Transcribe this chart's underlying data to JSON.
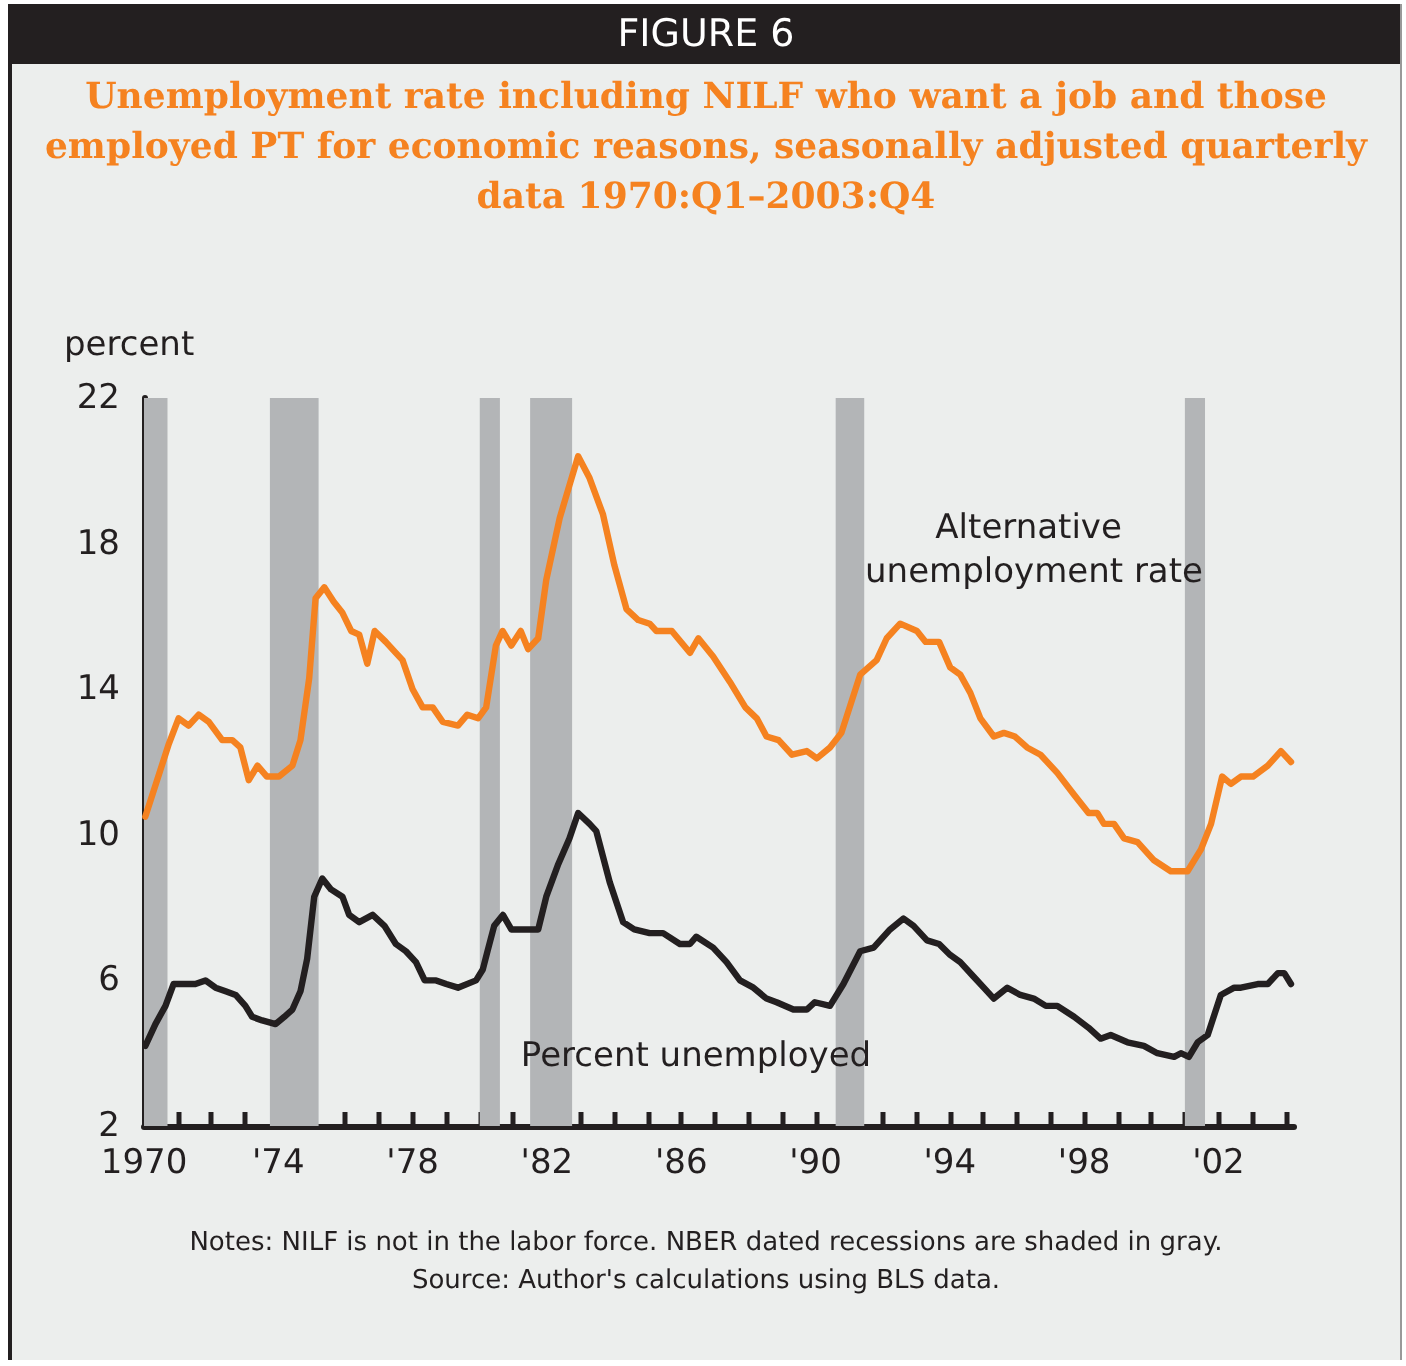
{
  "chart_data": {
    "type": "line",
    "title": "FIGURE 6",
    "subtitle": "Unemployment rate including NILF who want a job and those employed PT for economic reasons, seasonally adjusted quarterly data 1970:Q1–2003:Q4",
    "ylabel": "percent",
    "xlim": [
      1970,
      2004.25
    ],
    "xticks": [
      {
        "value": 1970,
        "label": "1970"
      },
      {
        "value": 1971,
        "label": null
      },
      {
        "value": 1972,
        "label": null
      },
      {
        "value": 1973,
        "label": null
      },
      {
        "value": 1974,
        "label": "'74"
      },
      {
        "value": 1975,
        "label": null
      },
      {
        "value": 1976,
        "label": null
      },
      {
        "value": 1977,
        "label": null
      },
      {
        "value": 1978,
        "label": "'78"
      },
      {
        "value": 1979,
        "label": null
      },
      {
        "value": 1980,
        "label": null
      },
      {
        "value": 1981,
        "label": null
      },
      {
        "value": 1982,
        "label": "'82"
      },
      {
        "value": 1983,
        "label": null
      },
      {
        "value": 1984,
        "label": null
      },
      {
        "value": 1985,
        "label": null
      },
      {
        "value": 1986,
        "label": "'86"
      },
      {
        "value": 1987,
        "label": null
      },
      {
        "value": 1988,
        "label": null
      },
      {
        "value": 1989,
        "label": null
      },
      {
        "value": 1990,
        "label": "'90"
      },
      {
        "value": 1991,
        "label": null
      },
      {
        "value": 1992,
        "label": null
      },
      {
        "value": 1993,
        "label": null
      },
      {
        "value": 1994,
        "label": "'94"
      },
      {
        "value": 1995,
        "label": null
      },
      {
        "value": 1996,
        "label": null
      },
      {
        "value": 1997,
        "label": null
      },
      {
        "value": 1998,
        "label": "'98"
      },
      {
        "value": 1999,
        "label": null
      },
      {
        "value": 2000,
        "label": null
      },
      {
        "value": 2001,
        "label": null
      },
      {
        "value": 2002,
        "label": "'02"
      },
      {
        "value": 2003,
        "label": null
      },
      {
        "value": 2004,
        "label": null
      }
    ],
    "ylim": [
      2,
      22
    ],
    "yticks": [
      2,
      6,
      10,
      14,
      18,
      22
    ],
    "grid": false,
    "marker": "none",
    "line_style": "solid",
    "series": [
      {
        "name": "Alternative unemployment rate",
        "color": "#f58220",
        "x": [
          1970.04,
          1970.74,
          1971.03,
          1971.33,
          1971.63,
          1971.93,
          1972.33,
          1972.63,
          1972.87,
          1973.12,
          1973.38,
          1973.66,
          1974.02,
          1974.42,
          1974.66,
          1974.92,
          1975.11,
          1975.37,
          1975.65,
          1975.91,
          1976.17,
          1976.41,
          1976.65,
          1976.87,
          1977.2,
          1977.5,
          1977.7,
          1978.0,
          1978.3,
          1978.6,
          1978.9,
          1979.35,
          1979.63,
          1979.95,
          1980.19,
          1980.48,
          1980.68,
          1980.94,
          1981.22,
          1981.44,
          1981.74,
          1981.98,
          1982.38,
          1982.67,
          1982.93,
          1983.27,
          1983.67,
          1984.01,
          1984.37,
          1984.72,
          1985.06,
          1985.26,
          1985.72,
          1986.26,
          1986.51,
          1986.95,
          1987.45,
          1987.91,
          1988.25,
          1988.54,
          1988.9,
          1989.3,
          1989.74,
          1990.04,
          1990.43,
          1990.77,
          1991.33,
          1991.82,
          1992.12,
          1992.52,
          1993.02,
          1993.28,
          1993.68,
          1994.01,
          1994.31,
          1994.61,
          1994.91,
          1995.31,
          1995.61,
          1995.94,
          1996.3,
          1996.7,
          1997.2,
          1997.7,
          1998.13,
          1998.39,
          1998.59,
          1998.89,
          1999.19,
          1999.59,
          2000.08,
          2000.58,
          2001.08,
          2001.48,
          2001.78,
          2002.11,
          2002.37,
          2002.67,
          2003.03,
          2003.47,
          2003.86,
          2004.16
        ],
        "values": [
          10.5,
          12.5,
          13.2,
          13.0,
          13.3,
          13.1,
          12.6,
          12.6,
          12.4,
          11.5,
          11.9,
          11.6,
          11.6,
          11.9,
          12.6,
          14.3,
          16.5,
          16.8,
          16.4,
          16.1,
          15.6,
          15.5,
          14.7,
          15.6,
          15.3,
          15.0,
          14.8,
          14.0,
          13.5,
          13.5,
          13.1,
          13.0,
          13.3,
          13.2,
          13.5,
          15.2,
          15.6,
          15.2,
          15.6,
          15.1,
          15.4,
          17.0,
          18.7,
          19.6,
          20.4,
          19.8,
          18.8,
          17.4,
          16.2,
          15.9,
          15.8,
          15.6,
          15.6,
          15.0,
          15.4,
          14.9,
          14.2,
          13.5,
          13.2,
          12.7,
          12.6,
          12.2,
          12.3,
          12.1,
          12.4,
          12.8,
          14.4,
          14.8,
          15.4,
          15.8,
          15.6,
          15.3,
          15.3,
          14.6,
          14.4,
          13.9,
          13.2,
          12.7,
          12.8,
          12.7,
          12.4,
          12.2,
          11.7,
          11.1,
          10.6,
          10.6,
          10.3,
          10.3,
          9.9,
          9.8,
          9.3,
          9.0,
          9.0,
          9.6,
          10.3,
          11.6,
          11.4,
          11.6,
          11.6,
          11.9,
          12.3,
          12.0
        ]
      },
      {
        "name": "Percent unemployed",
        "color": "#231f20",
        "x": [
          1970.04,
          1970.34,
          1970.64,
          1970.88,
          1971.13,
          1971.53,
          1971.83,
          1972.13,
          1972.43,
          1972.73,
          1973.02,
          1973.22,
          1973.52,
          1973.92,
          1974.18,
          1974.42,
          1974.66,
          1974.86,
          1975.07,
          1975.31,
          1975.57,
          1975.91,
          1976.11,
          1976.41,
          1976.81,
          1977.16,
          1977.5,
          1977.8,
          1978.1,
          1978.36,
          1978.7,
          1979.0,
          1979.35,
          1979.89,
          1980.09,
          1980.23,
          1980.43,
          1980.69,
          1980.94,
          1981.28,
          1981.74,
          1981.98,
          1982.34,
          1982.67,
          1982.93,
          1983.27,
          1983.47,
          1983.87,
          1984.27,
          1984.6,
          1985.06,
          1985.46,
          1985.96,
          1986.26,
          1986.45,
          1986.95,
          1987.35,
          1987.75,
          1988.15,
          1988.54,
          1988.84,
          1989.34,
          1989.74,
          1989.98,
          1990.43,
          1990.83,
          1991.33,
          1991.73,
          1992.22,
          1992.62,
          1992.92,
          1993.32,
          1993.68,
          1994.01,
          1994.31,
          1994.71,
          1995.01,
          1995.31,
          1995.71,
          1996.1,
          1996.5,
          1996.86,
          1997.2,
          1997.7,
          1998.13,
          1998.49,
          1998.79,
          1999.29,
          1999.78,
          2000.18,
          2000.68,
          2000.88,
          2001.12,
          2001.38,
          2001.68,
          2002.07,
          2002.47,
          2002.67,
          2003.17,
          2003.47,
          2003.77,
          2003.96,
          2004.16
        ],
        "values": [
          4.2,
          4.8,
          5.3,
          5.9,
          5.9,
          5.9,
          6.0,
          5.8,
          5.7,
          5.6,
          5.3,
          5.0,
          4.9,
          4.8,
          5.0,
          5.2,
          5.7,
          6.6,
          8.3,
          8.8,
          8.5,
          8.3,
          7.8,
          7.6,
          7.8,
          7.5,
          7.0,
          6.8,
          6.5,
          6.0,
          6.0,
          5.9,
          5.8,
          6.0,
          6.3,
          6.8,
          7.5,
          7.8,
          7.4,
          7.4,
          7.4,
          8.3,
          9.2,
          9.9,
          10.6,
          10.3,
          10.1,
          8.7,
          7.6,
          7.4,
          7.3,
          7.3,
          7.0,
          7.0,
          7.2,
          6.9,
          6.5,
          6.0,
          5.8,
          5.5,
          5.4,
          5.2,
          5.2,
          5.4,
          5.3,
          5.9,
          6.8,
          6.9,
          7.4,
          7.7,
          7.5,
          7.1,
          7.0,
          6.7,
          6.5,
          6.1,
          5.8,
          5.5,
          5.8,
          5.6,
          5.5,
          5.3,
          5.3,
          5.0,
          4.7,
          4.4,
          4.5,
          4.3,
          4.2,
          4.0,
          3.9,
          4.0,
          3.9,
          4.3,
          4.5,
          5.6,
          5.8,
          5.8,
          5.9,
          5.9,
          6.2,
          6.2,
          5.9
        ]
      }
    ],
    "bands": [
      {
        "axis": "x",
        "from": 1970,
        "to": 1970.7,
        "color": "#b3b5b7"
      },
      {
        "axis": "x",
        "from": 1973.75,
        "to": 1975.2,
        "color": "#b3b5b7"
      },
      {
        "axis": "x",
        "from": 1980.0,
        "to": 1980.6,
        "color": "#b3b5b7"
      },
      {
        "axis": "x",
        "from": 1981.5,
        "to": 1982.75,
        "color": "#b3b5b7"
      },
      {
        "axis": "x",
        "from": 1990.6,
        "to": 1991.45,
        "color": "#b3b5b7"
      },
      {
        "axis": "x",
        "from": 2001.0,
        "to": 2001.6,
        "color": "#b3b5b7"
      }
    ],
    "annotations": [
      "Notes: NILF is not in the labor force. NBER dated recessions are shaded in gray.",
      "Source: Author's calculations using BLS data."
    ]
  }
}
